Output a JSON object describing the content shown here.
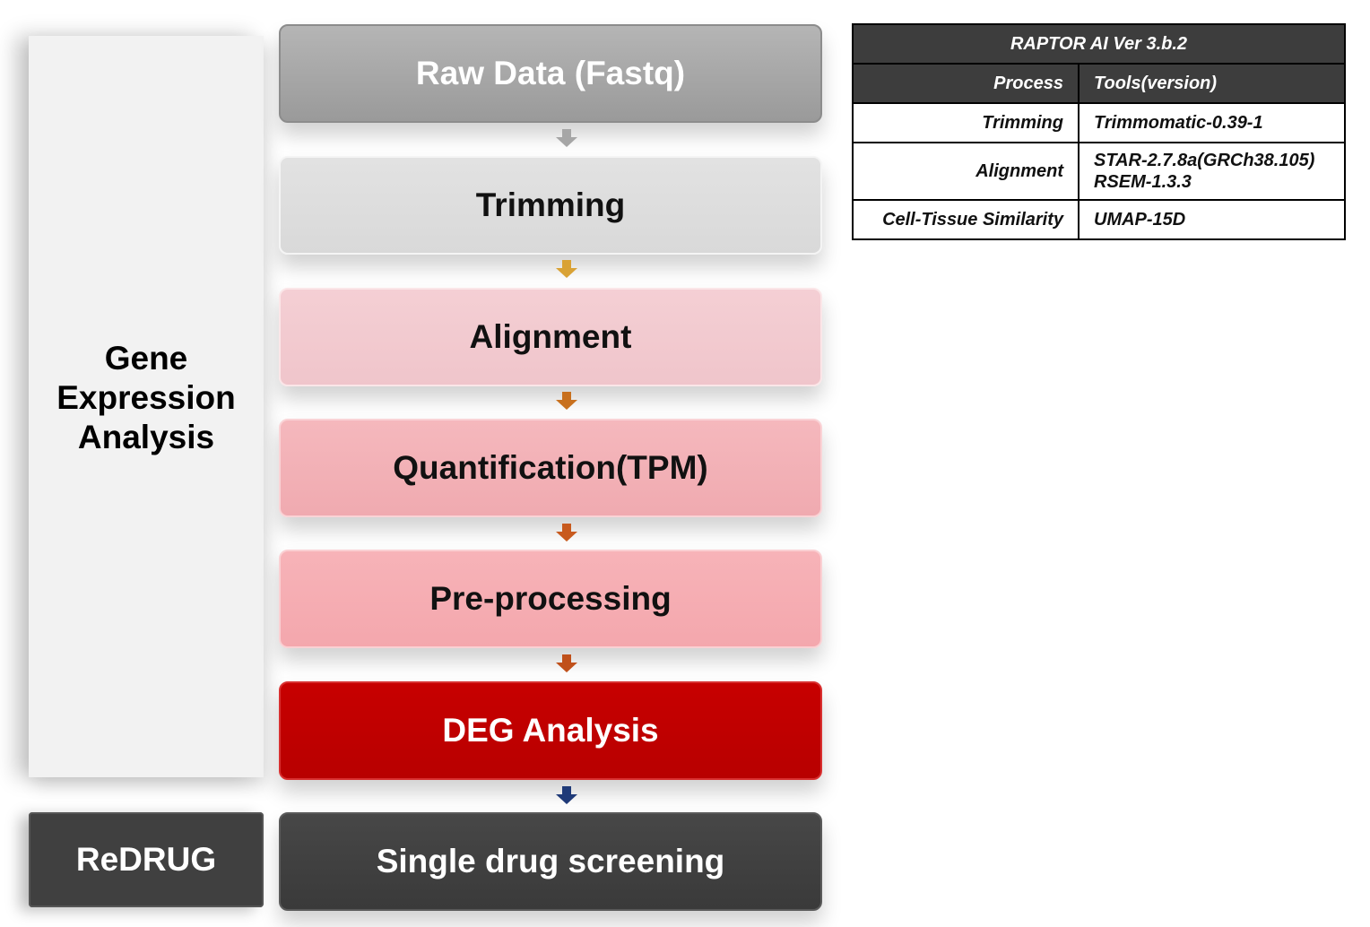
{
  "left_panel": {
    "gene_expression_label": "Gene\nExpression\nAnalysis",
    "redrug_label": "ReDRUG"
  },
  "pipeline": {
    "steps": [
      {
        "label": "Raw Data (Fastq)"
      },
      {
        "label": "Trimming"
      },
      {
        "label": "Alignment"
      },
      {
        "label": "Quantification(TPM)"
      },
      {
        "label": "Pre-processing"
      },
      {
        "label": "DEG Analysis"
      },
      {
        "label": "Single drug screening"
      }
    ],
    "arrow_colors": [
      "#a6a6a6",
      "#d9a235",
      "#c8701e",
      "#c85a1e",
      "#c0501a",
      "#1f3a78"
    ]
  },
  "tools_table": {
    "title": "RAPTOR AI Ver 3.b.2",
    "headers": {
      "process": "Process",
      "tools": "Tools(version)"
    },
    "rows": [
      {
        "process": "Trimming",
        "tools": [
          "Trimmomatic-0.39-1"
        ]
      },
      {
        "process": "Alignment",
        "tools": [
          "STAR-2.7.8a(GRCh38.105)",
          "RSEM-1.3.3"
        ]
      },
      {
        "process": "Cell-Tissue Similarity",
        "tools": [
          "UMAP-15D"
        ]
      }
    ]
  }
}
